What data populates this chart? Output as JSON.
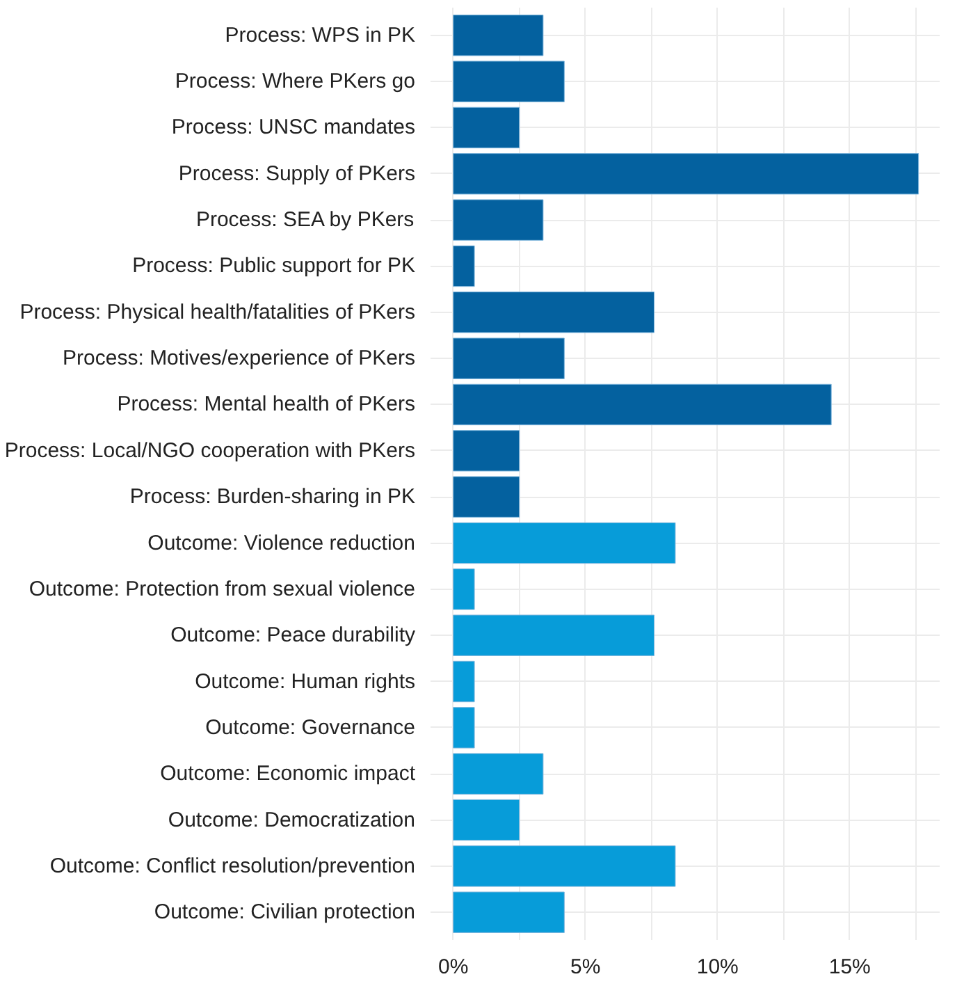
{
  "chart_data": {
    "type": "bar",
    "orientation": "horizontal",
    "categories": [
      "Process: WPS in PK",
      "Process: Where PKers go",
      "Process: UNSC mandates",
      "Process: Supply of PKers",
      "Process: SEA by PKers",
      "Process: Public support for PK",
      "Process: Physical health/fatalities of PKers",
      "Process: Motives/experience of PKers",
      "Process: Mental health of PKers",
      "Process: Local/NGO cooperation with PKers",
      "Process: Burden-sharing in PK",
      "Outcome: Violence reduction",
      "Outcome: Protection from sexual violence",
      "Outcome: Peace durability",
      "Outcome: Human rights",
      "Outcome: Governance",
      "Outcome: Economic impact",
      "Outcome: Democratization",
      "Outcome: Conflict resolution/prevention",
      "Outcome: Civilian protection"
    ],
    "values": [
      3.4,
      4.2,
      2.5,
      17.6,
      3.4,
      0.8,
      7.6,
      4.2,
      14.3,
      2.5,
      2.5,
      8.4,
      0.8,
      7.6,
      0.8,
      0.8,
      3.4,
      2.5,
      8.4,
      4.2
    ],
    "colors": [
      "#04619f",
      "#04619f",
      "#04619f",
      "#04619f",
      "#04619f",
      "#04619f",
      "#04619f",
      "#04619f",
      "#04619f",
      "#04619f",
      "#04619f",
      "#079cd9",
      "#079cd9",
      "#079cd9",
      "#079cd9",
      "#079cd9",
      "#079cd9",
      "#079cd9",
      "#079cd9",
      "#079cd9"
    ],
    "xlim": [
      -0.86,
      18.4
    ],
    "xticks": [
      {
        "value": 0,
        "label": "0%"
      },
      {
        "value": 2.5,
        "label": null
      },
      {
        "value": 5,
        "label": "5%"
      },
      {
        "value": 7.5,
        "label": null
      },
      {
        "value": 10,
        "label": "10%"
      },
      {
        "value": 12.5,
        "label": null
      },
      {
        "value": 15,
        "label": "15%"
      },
      {
        "value": 17.5,
        "label": null
      }
    ],
    "grid": true
  }
}
